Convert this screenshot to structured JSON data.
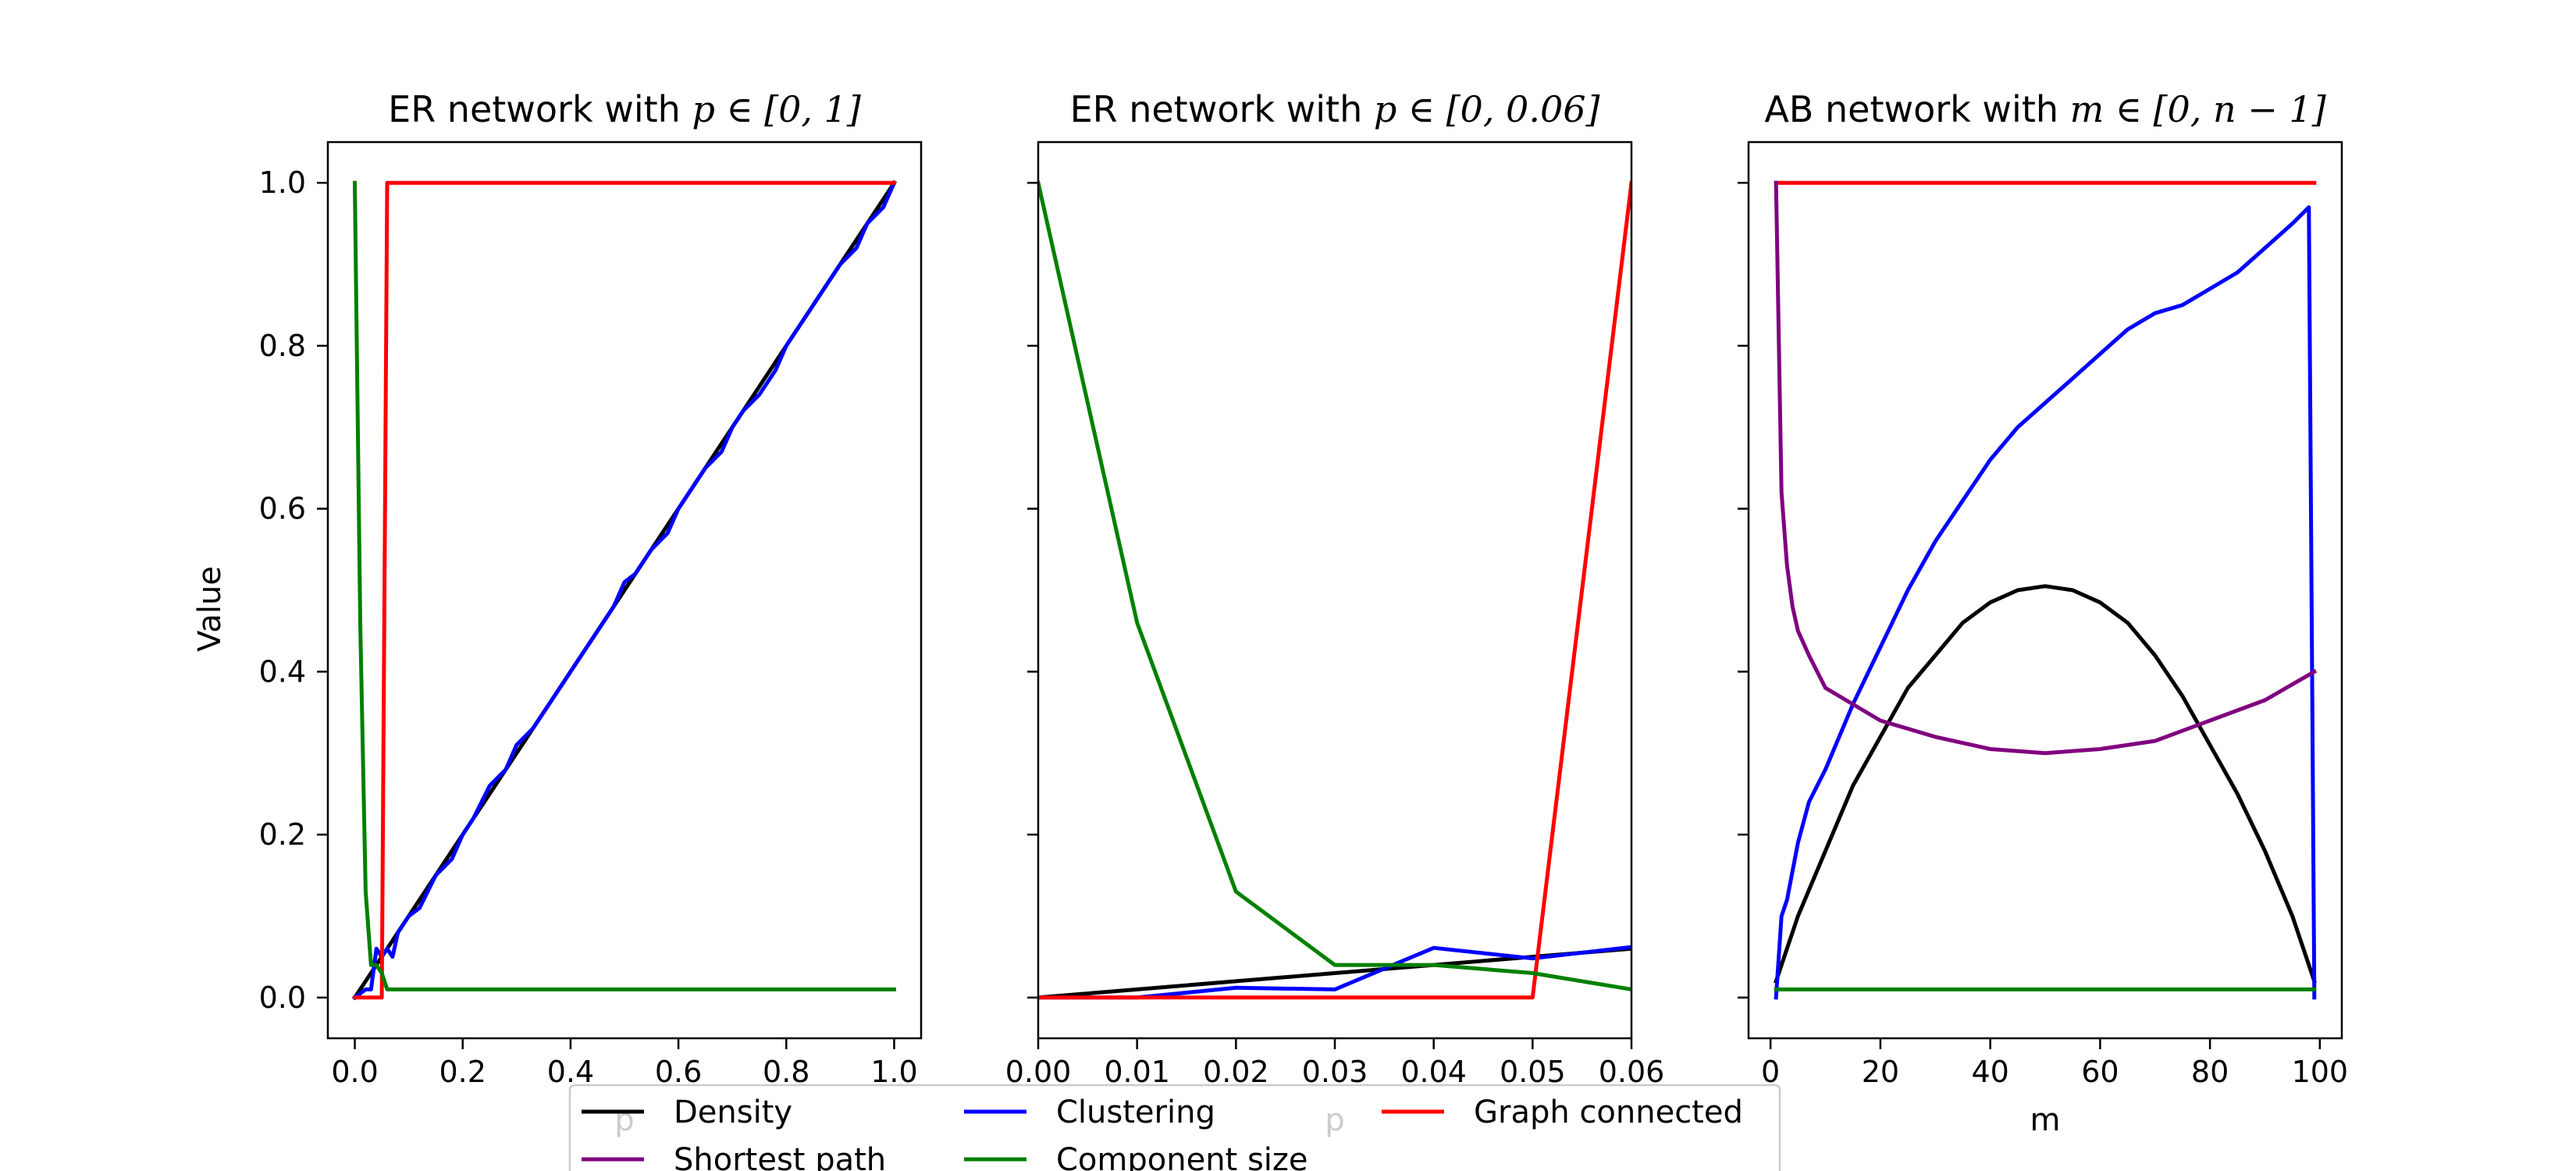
{
  "figure": {
    "ylabel": "Value",
    "legend": {
      "placement": "bottom-center",
      "columns": 3,
      "entries": [
        {
          "key": "density",
          "label": "Density",
          "color": "#000000"
        },
        {
          "key": "clustering",
          "label": "Clustering",
          "color": "#0000ff"
        },
        {
          "key": "connected",
          "label": "Graph connected",
          "color": "#ff0000"
        },
        {
          "key": "shortest",
          "label": "Shortest path",
          "color": "#800080"
        },
        {
          "key": "component",
          "label": "Component size",
          "color": "#008000"
        }
      ]
    }
  },
  "chart_data": [
    {
      "type": "line",
      "title_text": "ER network with ",
      "title_math": "p ∈ [0, 1]",
      "xlabel": "p",
      "ylabel": "Value",
      "xlim": [
        -0.05,
        1.05
      ],
      "ylim": [
        -0.05,
        1.05
      ],
      "xticks": [
        0.0,
        0.2,
        0.4,
        0.6,
        0.8,
        1.0
      ],
      "xtick_labels": [
        "0.0",
        "0.2",
        "0.4",
        "0.6",
        "0.8",
        "1.0"
      ],
      "yticks": [
        0.0,
        0.2,
        0.4,
        0.6,
        0.8,
        1.0
      ],
      "ytick_labels": [
        "0.0",
        "0.2",
        "0.4",
        "0.6",
        "0.8",
        "1.0"
      ],
      "show_ytick_labels": true,
      "grid": false,
      "series": [
        {
          "key": "density",
          "name": "Density",
          "color": "#000000",
          "x": [
            0,
            0.05,
            0.1,
            0.15,
            0.2,
            0.3,
            0.4,
            0.5,
            0.6,
            0.7,
            0.8,
            0.9,
            1.0
          ],
          "y": [
            0,
            0.05,
            0.1,
            0.15,
            0.2,
            0.3,
            0.4,
            0.5,
            0.6,
            0.7,
            0.8,
            0.9,
            1.0
          ]
        },
        {
          "key": "clustering",
          "name": "Clustering",
          "color": "#0000ff",
          "x": [
            0,
            0.02,
            0.03,
            0.04,
            0.05,
            0.06,
            0.07,
            0.08,
            0.1,
            0.12,
            0.15,
            0.18,
            0.2,
            0.22,
            0.25,
            0.28,
            0.3,
            0.33,
            0.35,
            0.37,
            0.38,
            0.4,
            0.42,
            0.45,
            0.48,
            0.5,
            0.52,
            0.55,
            0.58,
            0.6,
            0.62,
            0.65,
            0.68,
            0.7,
            0.72,
            0.75,
            0.78,
            0.8,
            0.82,
            0.85,
            0.88,
            0.9,
            0.93,
            0.95,
            0.98,
            1.0
          ],
          "y": [
            0,
            0.01,
            0.01,
            0.06,
            0.05,
            0.06,
            0.05,
            0.08,
            0.1,
            0.11,
            0.15,
            0.17,
            0.2,
            0.22,
            0.26,
            0.28,
            0.31,
            0.33,
            0.35,
            0.37,
            0.38,
            0.4,
            0.42,
            0.45,
            0.48,
            0.51,
            0.52,
            0.55,
            0.57,
            0.6,
            0.62,
            0.65,
            0.67,
            0.7,
            0.72,
            0.74,
            0.77,
            0.8,
            0.82,
            0.85,
            0.88,
            0.9,
            0.92,
            0.95,
            0.97,
            1.0
          ]
        },
        {
          "key": "connected",
          "name": "Graph connected",
          "color": "#ff0000",
          "x": [
            0,
            0.05,
            0.06,
            1.0
          ],
          "y": [
            0,
            0,
            1.0,
            1.0
          ]
        },
        {
          "key": "component",
          "name": "Component size",
          "color": "#008000",
          "x": [
            0,
            0.01,
            0.02,
            0.03,
            0.04,
            0.05,
            0.06,
            1.0
          ],
          "y": [
            1.0,
            0.46,
            0.13,
            0.04,
            0.04,
            0.03,
            0.01,
            0.01
          ]
        }
      ]
    },
    {
      "type": "line",
      "title_text": "ER network with ",
      "title_math": "p ∈ [0, 0.06]",
      "xlabel": "p",
      "ylabel": "",
      "xlim": [
        0.0,
        0.06
      ],
      "ylim": [
        -0.05,
        1.05
      ],
      "xticks": [
        0.0,
        0.01,
        0.02,
        0.03,
        0.04,
        0.05,
        0.06
      ],
      "xtick_labels": [
        "0.00",
        "0.01",
        "0.02",
        "0.03",
        "0.04",
        "0.05",
        "0.06"
      ],
      "yticks": [
        0.0,
        0.2,
        0.4,
        0.6,
        0.8,
        1.0
      ],
      "ytick_labels": [],
      "show_ytick_labels": false,
      "grid": false,
      "series": [
        {
          "key": "density",
          "name": "Density",
          "color": "#000000",
          "x": [
            0,
            0.01,
            0.02,
            0.03,
            0.04,
            0.05,
            0.06
          ],
          "y": [
            0,
            0.01,
            0.02,
            0.03,
            0.04,
            0.05,
            0.06
          ]
        },
        {
          "key": "clustering",
          "name": "Clustering",
          "color": "#0000ff",
          "x": [
            0,
            0.01,
            0.02,
            0.03,
            0.04,
            0.05,
            0.06
          ],
          "y": [
            0,
            0.0,
            0.012,
            0.01,
            0.061,
            0.048,
            0.062
          ]
        },
        {
          "key": "connected",
          "name": "Graph connected",
          "color": "#ff0000",
          "x": [
            0,
            0.01,
            0.02,
            0.03,
            0.04,
            0.05,
            0.06
          ],
          "y": [
            0,
            0,
            0,
            0,
            0,
            0,
            1.0
          ]
        },
        {
          "key": "component",
          "name": "Component size",
          "color": "#008000",
          "x": [
            0,
            0.01,
            0.02,
            0.03,
            0.04,
            0.05,
            0.06
          ],
          "y": [
            1.0,
            0.46,
            0.13,
            0.04,
            0.04,
            0.03,
            0.01
          ]
        }
      ]
    },
    {
      "type": "line",
      "title_text": "AB network with ",
      "title_math": "m ∈ [0, n − 1]",
      "xlabel": "m",
      "ylabel": "",
      "xlim": [
        -4,
        104
      ],
      "ylim": [
        -0.05,
        1.05
      ],
      "xticks": [
        0,
        20,
        40,
        60,
        80,
        100
      ],
      "xtick_labels": [
        "0",
        "20",
        "40",
        "60",
        "80",
        "100"
      ],
      "yticks": [
        0.0,
        0.2,
        0.4,
        0.6,
        0.8,
        1.0
      ],
      "ytick_labels": [],
      "show_ytick_labels": false,
      "grid": false,
      "series": [
        {
          "key": "density",
          "name": "Density",
          "color": "#000000",
          "x": [
            1,
            5,
            10,
            15,
            20,
            25,
            30,
            35,
            40,
            45,
            50,
            55,
            60,
            65,
            70,
            75,
            80,
            85,
            90,
            95,
            99
          ],
          "y": [
            0.02,
            0.1,
            0.18,
            0.26,
            0.32,
            0.38,
            0.42,
            0.46,
            0.485,
            0.5,
            0.505,
            0.5,
            0.485,
            0.46,
            0.42,
            0.37,
            0.31,
            0.25,
            0.18,
            0.1,
            0.02
          ]
        },
        {
          "key": "clustering",
          "name": "Clustering",
          "color": "#0000ff",
          "x": [
            1,
            2,
            3,
            5,
            7,
            10,
            15,
            20,
            25,
            30,
            35,
            40,
            45,
            50,
            55,
            60,
            65,
            70,
            75,
            80,
            85,
            90,
            95,
            98,
            99
          ],
          "y": [
            0.0,
            0.1,
            0.12,
            0.19,
            0.24,
            0.28,
            0.36,
            0.43,
            0.5,
            0.56,
            0.61,
            0.66,
            0.7,
            0.73,
            0.76,
            0.79,
            0.82,
            0.84,
            0.85,
            0.87,
            0.89,
            0.92,
            0.95,
            0.97,
            0.0
          ]
        },
        {
          "key": "connected",
          "name": "Graph connected",
          "color": "#ff0000",
          "x": [
            1,
            99
          ],
          "y": [
            1.0,
            1.0
          ]
        },
        {
          "key": "shortest",
          "name": "Shortest path",
          "color": "#800080",
          "x": [
            1,
            2,
            3,
            4,
            5,
            7,
            10,
            15,
            20,
            30,
            40,
            50,
            60,
            70,
            80,
            90,
            99
          ],
          "y": [
            1.0,
            0.62,
            0.53,
            0.48,
            0.45,
            0.42,
            0.38,
            0.36,
            0.34,
            0.32,
            0.305,
            0.3,
            0.305,
            0.315,
            0.34,
            0.365,
            0.4
          ]
        },
        {
          "key": "component",
          "name": "Component size",
          "color": "#008000",
          "x": [
            1,
            99
          ],
          "y": [
            0.01,
            0.01
          ]
        }
      ]
    }
  ]
}
